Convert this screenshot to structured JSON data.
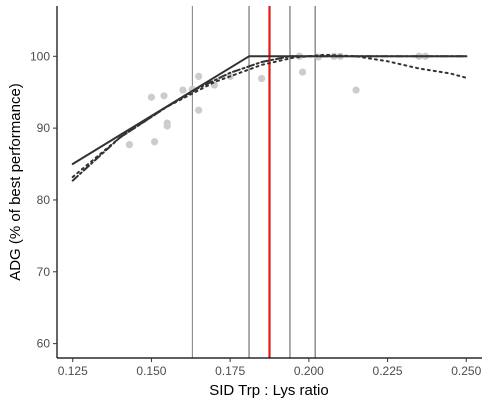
{
  "chart_data": {
    "type": "scatter",
    "title": "",
    "xlabel": "SID Trp : Lys ratio",
    "ylabel": "ADG (% of best performance)",
    "xlim": [
      0.12,
      0.255
    ],
    "ylim": [
      58,
      107
    ],
    "x_ticks": [
      0.125,
      0.15,
      0.175,
      0.2,
      0.225,
      0.25
    ],
    "x_tick_labels": [
      "0.125",
      "0.150",
      "0.175",
      "0.200",
      "0.225",
      "0.250"
    ],
    "y_ticks": [
      60,
      70,
      80,
      90,
      100
    ],
    "y_tick_labels": [
      "60",
      "70",
      "80",
      "90",
      "100"
    ],
    "grid": false,
    "legend": "none",
    "points": [
      {
        "x": 0.143,
        "y": 87.7
      },
      {
        "x": 0.15,
        "y": 94.3
      },
      {
        "x": 0.151,
        "y": 88.1
      },
      {
        "x": 0.154,
        "y": 94.5
      },
      {
        "x": 0.155,
        "y": 90.3
      },
      {
        "x": 0.155,
        "y": 90.7
      },
      {
        "x": 0.16,
        "y": 95.3
      },
      {
        "x": 0.163,
        "y": 95.4
      },
      {
        "x": 0.165,
        "y": 97.2
      },
      {
        "x": 0.165,
        "y": 92.5
      },
      {
        "x": 0.17,
        "y": 96.0
      },
      {
        "x": 0.175,
        "y": 97.2
      },
      {
        "x": 0.185,
        "y": 96.9
      },
      {
        "x": 0.197,
        "y": 100.0
      },
      {
        "x": 0.198,
        "y": 97.8
      },
      {
        "x": 0.203,
        "y": 99.9
      },
      {
        "x": 0.208,
        "y": 100.0
      },
      {
        "x": 0.21,
        "y": 100.0
      },
      {
        "x": 0.215,
        "y": 95.3
      },
      {
        "x": 0.235,
        "y": 100.0
      },
      {
        "x": 0.237,
        "y": 100.0
      }
    ],
    "series": [
      {
        "style": "solid",
        "color": "#333333",
        "x": [
          0.125,
          0.181,
          0.25
        ],
        "y": [
          85.0,
          100.0,
          100.0
        ]
      },
      {
        "style": "dashed",
        "color": "#333333",
        "x": [
          0.125,
          0.14,
          0.155,
          0.165,
          0.175,
          0.185,
          0.194,
          0.2,
          0.25
        ],
        "y": [
          82.7,
          88.7,
          93.0,
          95.6,
          97.7,
          99.2,
          100.0,
          100.0,
          100.0
        ]
      },
      {
        "style": "dotted",
        "color": "#333333",
        "x": [
          0.125,
          0.14,
          0.155,
          0.17,
          0.185,
          0.195,
          0.205,
          0.215,
          0.225,
          0.235,
          0.245,
          0.25
        ],
        "y": [
          83.2,
          88.7,
          93.0,
          96.4,
          98.8,
          99.8,
          100.2,
          100.0,
          99.3,
          98.3,
          97.6,
          97.0
        ]
      }
    ],
    "vlines": [
      {
        "x": 0.163,
        "color": "#808080"
      },
      {
        "x": 0.181,
        "color": "#555555"
      },
      {
        "x": 0.1875,
        "color": "#e31a1c"
      },
      {
        "x": 0.194,
        "color": "#555555"
      },
      {
        "x": 0.202,
        "color": "#555555"
      }
    ],
    "colors": {
      "points": "#cccccc",
      "highlight": "#e31a1c"
    }
  }
}
